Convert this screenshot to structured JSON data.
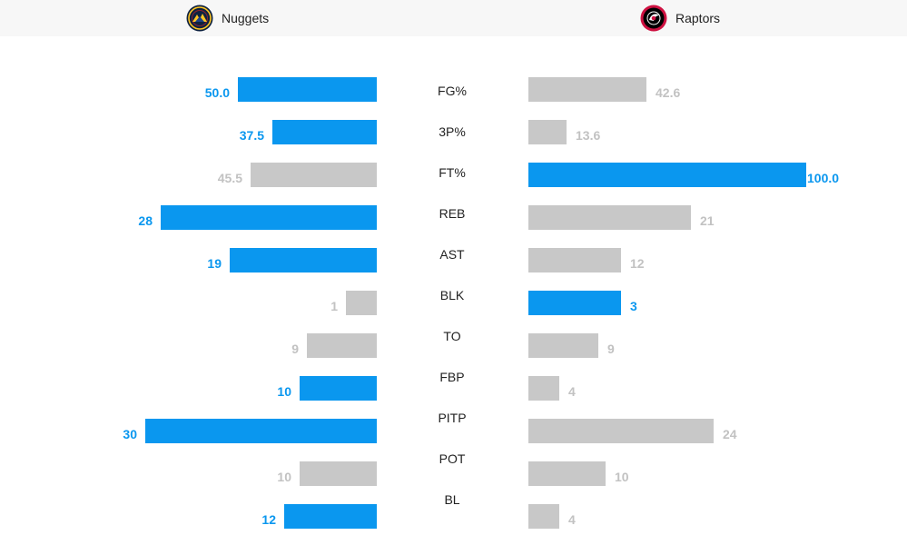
{
  "header": {
    "home": {
      "name": "Nuggets",
      "logo": "nuggets-logo-icon"
    },
    "away": {
      "name": "Raptors",
      "logo": "raptors-logo-icon"
    }
  },
  "colors": {
    "highlight": "#0a97ef",
    "neutral": "#c8c8c8",
    "neutral_text": "#c2c2c2"
  },
  "chart_data": {
    "type": "bar",
    "orientation": "horizontal-mirrored",
    "categories": [
      "FG%",
      "3P%",
      "FT%",
      "REB",
      "AST",
      "BLK",
      "TO",
      "FBP",
      "PITP",
      "POT",
      "BL"
    ],
    "series": [
      {
        "name": "Nuggets",
        "values": [
          "50.0",
          "37.5",
          "45.5",
          "28",
          "19",
          "1",
          "9",
          "10",
          "30",
          "10",
          "12"
        ],
        "highlight": [
          true,
          true,
          false,
          true,
          true,
          false,
          false,
          true,
          true,
          false,
          true
        ]
      },
      {
        "name": "Raptors",
        "values": [
          "42.6",
          "13.6",
          "100.0",
          "21",
          "12",
          "3",
          "9",
          "4",
          "24",
          "10",
          "4"
        ],
        "highlight": [
          false,
          false,
          true,
          false,
          false,
          true,
          false,
          false,
          false,
          false,
          false
        ]
      }
    ],
    "scale": [
      "100",
      "100",
      "100",
      "36",
      "36",
      "9",
      "36",
      "36",
      "36",
      "36",
      "36"
    ]
  }
}
